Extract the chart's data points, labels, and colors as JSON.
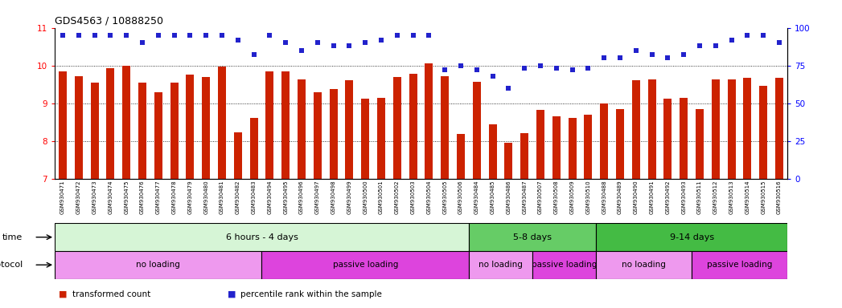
{
  "title": "GDS4563 / 10888250",
  "samples": [
    "GSM930471",
    "GSM930472",
    "GSM930473",
    "GSM930474",
    "GSM930475",
    "GSM930476",
    "GSM930477",
    "GSM930478",
    "GSM930479",
    "GSM930480",
    "GSM930481",
    "GSM930482",
    "GSM930483",
    "GSM930494",
    "GSM930495",
    "GSM930496",
    "GSM930497",
    "GSM930498",
    "GSM930499",
    "GSM930500",
    "GSM930501",
    "GSM930502",
    "GSM930503",
    "GSM930504",
    "GSM930505",
    "GSM930506",
    "GSM930484",
    "GSM930485",
    "GSM930486",
    "GSM930487",
    "GSM930507",
    "GSM930508",
    "GSM930509",
    "GSM930510",
    "GSM930488",
    "GSM930489",
    "GSM930490",
    "GSM930491",
    "GSM930492",
    "GSM930493",
    "GSM930511",
    "GSM930512",
    "GSM930513",
    "GSM930514",
    "GSM930515",
    "GSM930516"
  ],
  "bar_values": [
    9.85,
    9.72,
    9.55,
    9.92,
    10.0,
    9.55,
    9.3,
    9.55,
    9.75,
    9.7,
    9.98,
    8.22,
    8.62,
    9.85,
    9.85,
    9.63,
    9.28,
    9.38,
    9.6,
    9.12,
    9.15,
    9.7,
    9.78,
    10.05,
    9.72,
    8.18,
    9.56,
    8.43,
    7.95,
    8.2,
    8.82,
    8.65,
    8.62,
    8.7,
    9.0,
    8.84,
    9.6,
    9.63,
    9.12,
    9.15,
    8.85,
    9.63,
    9.63,
    9.68,
    9.45,
    9.68
  ],
  "percentile_values": [
    95,
    95,
    95,
    95,
    95,
    90,
    95,
    95,
    95,
    95,
    95,
    92,
    82,
    95,
    90,
    85,
    90,
    88,
    88,
    90,
    92,
    95,
    95,
    95,
    72,
    75,
    72,
    68,
    60,
    73,
    75,
    73,
    72,
    73,
    80,
    80,
    85,
    82,
    80,
    82,
    88,
    88,
    92,
    95,
    95,
    90
  ],
  "bar_color": "#cc2200",
  "dot_color": "#2222cc",
  "ylim_left": [
    7,
    11
  ],
  "ylim_right": [
    0,
    100
  ],
  "yticks_left": [
    7,
    8,
    9,
    10,
    11
  ],
  "yticks_right": [
    0,
    25,
    50,
    75,
    100
  ],
  "grid_values": [
    8,
    9,
    10
  ],
  "time_groups": [
    {
      "label": "6 hours - 4 days",
      "start": 0,
      "end": 26,
      "color": "#d6f5d6"
    },
    {
      "label": "5-8 days",
      "start": 26,
      "end": 34,
      "color": "#66cc66"
    },
    {
      "label": "9-14 days",
      "start": 34,
      "end": 46,
      "color": "#44bb44"
    }
  ],
  "protocol_groups": [
    {
      "label": "no loading",
      "start": 0,
      "end": 13,
      "color": "#ee99ee"
    },
    {
      "label": "passive loading",
      "start": 13,
      "end": 26,
      "color": "#dd44dd"
    },
    {
      "label": "no loading",
      "start": 26,
      "end": 30,
      "color": "#ee99ee"
    },
    {
      "label": "passive loading",
      "start": 30,
      "end": 34,
      "color": "#dd44dd"
    },
    {
      "label": "no loading",
      "start": 34,
      "end": 40,
      "color": "#ee99ee"
    },
    {
      "label": "passive loading",
      "start": 40,
      "end": 46,
      "color": "#dd44dd"
    }
  ],
  "legend_items": [
    {
      "label": "transformed count",
      "color": "#cc2200"
    },
    {
      "label": "percentile rank within the sample",
      "color": "#2222cc"
    }
  ]
}
